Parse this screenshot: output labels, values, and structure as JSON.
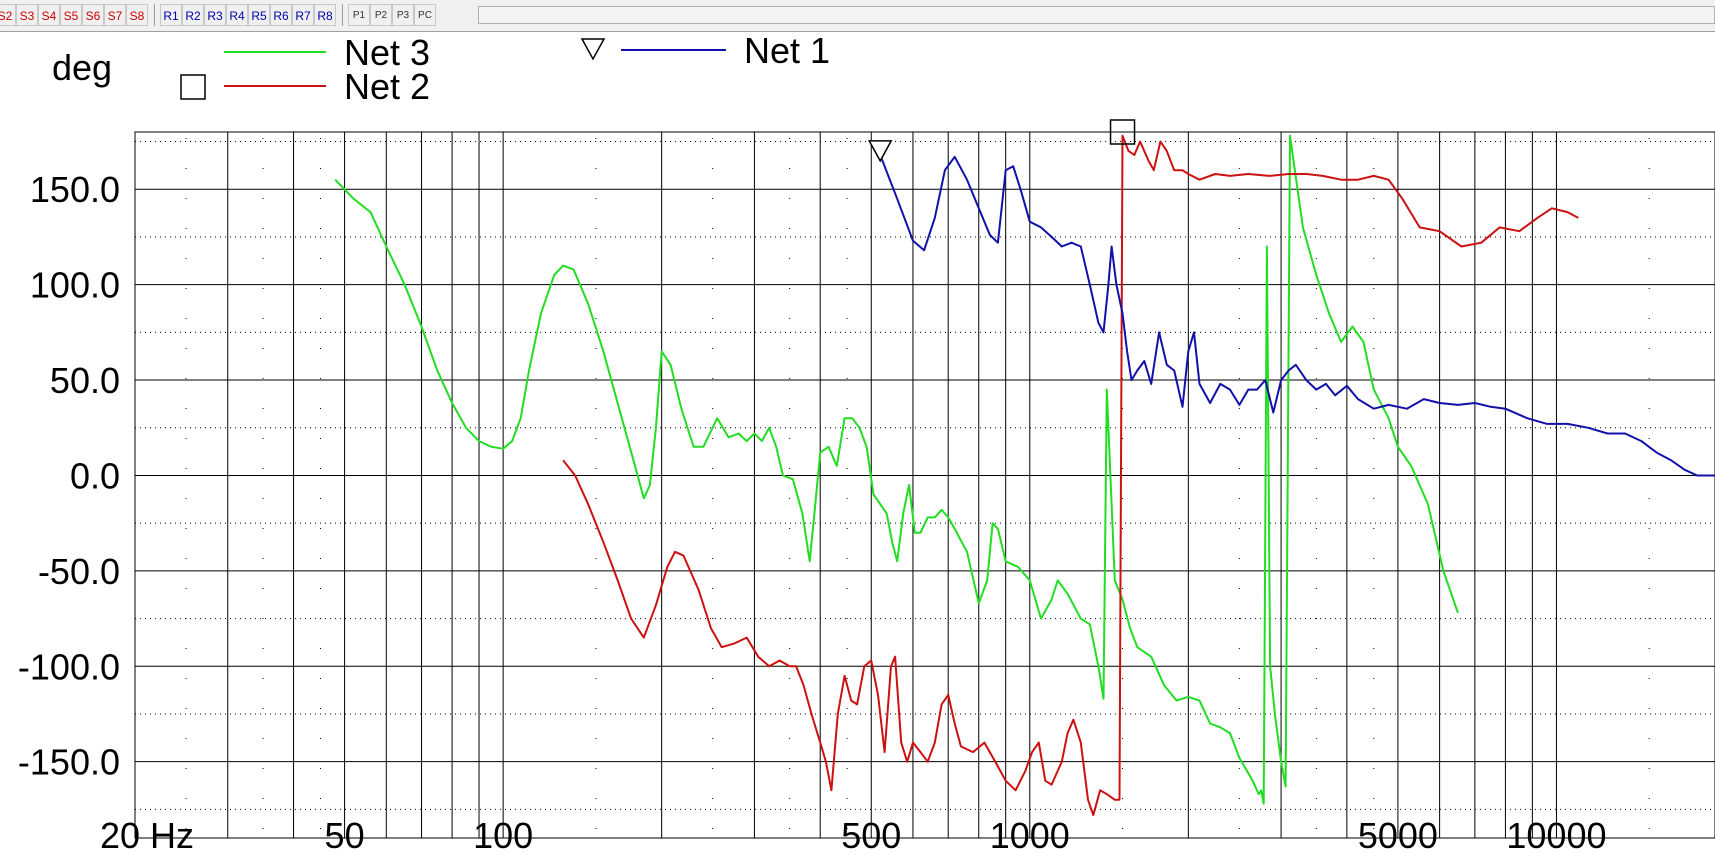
{
  "toolbar": {
    "s_buttons": [
      "S2",
      "S3",
      "S4",
      "S5",
      "S6",
      "S7",
      "S8"
    ],
    "r_buttons": [
      "R1",
      "R2",
      "R3",
      "R4",
      "R5",
      "R6",
      "R7",
      "R8"
    ],
    "p_buttons": [
      "P1",
      "P2",
      "P3",
      "PC"
    ]
  },
  "chart_data": {
    "type": "line",
    "ylabel": "deg",
    "x_scale": "log",
    "xlim": [
      20,
      20000
    ],
    "ylim": [
      -190,
      180
    ],
    "x_tick_labels": [
      {
        "value": 20,
        "label": "20 Hz"
      },
      {
        "value": 50,
        "label": "50"
      },
      {
        "value": 100,
        "label": "100"
      },
      {
        "value": 500,
        "label": "500"
      },
      {
        "value": 1000,
        "label": "1000"
      },
      {
        "value": 5000,
        "label": "5000"
      },
      {
        "value": 10000,
        "label": "10000"
      }
    ],
    "y_tick_labels": [
      {
        "value": 150,
        "label": "150.0"
      },
      {
        "value": 100,
        "label": "100.0"
      },
      {
        "value": 50,
        "label": "50.0"
      },
      {
        "value": 0,
        "label": "0.0"
      },
      {
        "value": -50,
        "label": "-50.0"
      },
      {
        "value": -100,
        "label": "-100.0"
      },
      {
        "value": -150,
        "label": "-150.0"
      }
    ],
    "grid": true,
    "legend": [
      {
        "name": "Net 3",
        "color": "#22dd22",
        "marker": "none"
      },
      {
        "name": "Net 2",
        "color": "#cc1111",
        "marker": "square"
      },
      {
        "name": "Net 1",
        "color": "#1111aa",
        "marker": "triangle"
      }
    ],
    "series": [
      {
        "name": "Net 3",
        "color": "#22dd22",
        "points": [
          [
            48,
            155
          ],
          [
            52,
            145
          ],
          [
            56,
            138
          ],
          [
            60,
            120
          ],
          [
            65,
            100
          ],
          [
            70,
            78
          ],
          [
            75,
            55
          ],
          [
            80,
            38
          ],
          [
            85,
            25
          ],
          [
            90,
            18
          ],
          [
            95,
            15
          ],
          [
            100,
            14
          ],
          [
            104,
            18
          ],
          [
            108,
            30
          ],
          [
            112,
            55
          ],
          [
            118,
            85
          ],
          [
            125,
            105
          ],
          [
            130,
            110
          ],
          [
            136,
            108
          ],
          [
            145,
            90
          ],
          [
            155,
            65
          ],
          [
            168,
            30
          ],
          [
            178,
            5
          ],
          [
            185,
            -12
          ],
          [
            190,
            -5
          ],
          [
            195,
            25
          ],
          [
            200,
            65
          ],
          [
            208,
            58
          ],
          [
            218,
            35
          ],
          [
            230,
            15
          ],
          [
            240,
            15
          ],
          [
            255,
            30
          ],
          [
            268,
            20
          ],
          [
            280,
            22
          ],
          [
            290,
            18
          ],
          [
            300,
            22
          ],
          [
            310,
            18
          ],
          [
            320,
            25
          ],
          [
            330,
            15
          ],
          [
            340,
            0
          ],
          [
            355,
            -2
          ],
          [
            370,
            -20
          ],
          [
            382,
            -45
          ],
          [
            390,
            -20
          ],
          [
            400,
            12
          ],
          [
            415,
            15
          ],
          [
            430,
            5
          ],
          [
            445,
            30
          ],
          [
            460,
            30
          ],
          [
            475,
            25
          ],
          [
            490,
            15
          ],
          [
            505,
            -10
          ],
          [
            520,
            -15
          ],
          [
            535,
            -20
          ],
          [
            548,
            -35
          ],
          [
            560,
            -45
          ],
          [
            575,
            -20
          ],
          [
            590,
            -5
          ],
          [
            605,
            -30
          ],
          [
            620,
            -30
          ],
          [
            640,
            -22
          ],
          [
            660,
            -22
          ],
          [
            680,
            -18
          ],
          [
            700,
            -22
          ],
          [
            720,
            -28
          ],
          [
            760,
            -40
          ],
          [
            800,
            -67
          ],
          [
            830,
            -55
          ],
          [
            850,
            -25
          ],
          [
            870,
            -28
          ],
          [
            900,
            -45
          ],
          [
            950,
            -48
          ],
          [
            1000,
            -55
          ],
          [
            1050,
            -75
          ],
          [
            1100,
            -65
          ],
          [
            1130,
            -55
          ],
          [
            1180,
            -62
          ],
          [
            1250,
            -75
          ],
          [
            1300,
            -78
          ],
          [
            1350,
            -100
          ],
          [
            1380,
            -117
          ],
          [
            1400,
            45
          ],
          [
            1420,
            5
          ],
          [
            1450,
            -55
          ],
          [
            1500,
            -65
          ],
          [
            1550,
            -80
          ],
          [
            1600,
            -90
          ],
          [
            1700,
            -95
          ],
          [
            1800,
            -110
          ],
          [
            1900,
            -118
          ],
          [
            2000,
            -116
          ],
          [
            2100,
            -118
          ],
          [
            2200,
            -130
          ],
          [
            2300,
            -132
          ],
          [
            2400,
            -135
          ],
          [
            2500,
            -148
          ],
          [
            2650,
            -160
          ],
          [
            2720,
            -167
          ],
          [
            2750,
            -165
          ],
          [
            2780,
            -172
          ],
          [
            2820,
            120
          ],
          [
            2860,
            -100
          ],
          [
            2920,
            -125
          ],
          [
            3000,
            -150
          ],
          [
            3060,
            -163
          ],
          [
            3120,
            178
          ],
          [
            3300,
            130
          ],
          [
            3500,
            105
          ],
          [
            3700,
            85
          ],
          [
            3900,
            70
          ],
          [
            4100,
            78
          ],
          [
            4300,
            70
          ],
          [
            4500,
            45
          ],
          [
            4800,
            30
          ],
          [
            5000,
            15
          ],
          [
            5300,
            5
          ],
          [
            5700,
            -15
          ],
          [
            6100,
            -50
          ],
          [
            6500,
            -72
          ]
        ]
      },
      {
        "name": "Net 2",
        "color": "#cc1111",
        "points": [
          [
            130,
            8
          ],
          [
            137,
            0
          ],
          [
            145,
            -15
          ],
          [
            155,
            -35
          ],
          [
            165,
            -55
          ],
          [
            175,
            -75
          ],
          [
            185,
            -85
          ],
          [
            195,
            -68
          ],
          [
            205,
            -48
          ],
          [
            212,
            -40
          ],
          [
            220,
            -42
          ],
          [
            235,
            -60
          ],
          [
            248,
            -80
          ],
          [
            260,
            -90
          ],
          [
            275,
            -88
          ],
          [
            290,
            -85
          ],
          [
            305,
            -95
          ],
          [
            320,
            -100
          ],
          [
            335,
            -97
          ],
          [
            350,
            -100
          ],
          [
            360,
            -100
          ],
          [
            372,
            -110
          ],
          [
            385,
            -125
          ],
          [
            400,
            -140
          ],
          [
            410,
            -150
          ],
          [
            420,
            -165
          ],
          [
            432,
            -125
          ],
          [
            445,
            -105
          ],
          [
            458,
            -118
          ],
          [
            470,
            -120
          ],
          [
            485,
            -100
          ],
          [
            500,
            -97
          ],
          [
            515,
            -115
          ],
          [
            530,
            -145
          ],
          [
            545,
            -100
          ],
          [
            555,
            -95
          ],
          [
            570,
            -140
          ],
          [
            585,
            -150
          ],
          [
            600,
            -140
          ],
          [
            620,
            -145
          ],
          [
            640,
            -150
          ],
          [
            660,
            -140
          ],
          [
            680,
            -120
          ],
          [
            700,
            -115
          ],
          [
            720,
            -130
          ],
          [
            740,
            -142
          ],
          [
            780,
            -145
          ],
          [
            820,
            -140
          ],
          [
            860,
            -150
          ],
          [
            900,
            -160
          ],
          [
            940,
            -165
          ],
          [
            980,
            -155
          ],
          [
            1010,
            -145
          ],
          [
            1040,
            -140
          ],
          [
            1070,
            -160
          ],
          [
            1100,
            -162
          ],
          [
            1150,
            -150
          ],
          [
            1180,
            -135
          ],
          [
            1210,
            -128
          ],
          [
            1250,
            -140
          ],
          [
            1290,
            -170
          ],
          [
            1320,
            -178
          ],
          [
            1360,
            -165
          ],
          [
            1400,
            -167
          ],
          [
            1450,
            -170
          ],
          [
            1480,
            -170
          ],
          [
            1500,
            178
          ],
          [
            1540,
            170
          ],
          [
            1580,
            168
          ],
          [
            1620,
            175
          ],
          [
            1680,
            165
          ],
          [
            1720,
            160
          ],
          [
            1770,
            175
          ],
          [
            1820,
            170
          ],
          [
            1880,
            160
          ],
          [
            1950,
            160
          ],
          [
            2000,
            158
          ],
          [
            2100,
            155
          ],
          [
            2250,
            158
          ],
          [
            2400,
            157
          ],
          [
            2600,
            158
          ],
          [
            2850,
            157
          ],
          [
            3100,
            158
          ],
          [
            3350,
            158
          ],
          [
            3600,
            157
          ],
          [
            3900,
            155
          ],
          [
            4200,
            155
          ],
          [
            4500,
            157
          ],
          [
            4800,
            155
          ],
          [
            5100,
            145
          ],
          [
            5500,
            130
          ],
          [
            6000,
            128
          ],
          [
            6600,
            120
          ],
          [
            7200,
            122
          ],
          [
            7800,
            130
          ],
          [
            8500,
            128
          ],
          [
            9200,
            135
          ],
          [
            9800,
            140
          ],
          [
            10500,
            138
          ],
          [
            11000,
            135
          ]
        ]
      },
      {
        "name": "Net 1",
        "color": "#1111aa",
        "points": [
          [
            520,
            168
          ],
          [
            560,
            145
          ],
          [
            600,
            123
          ],
          [
            630,
            118
          ],
          [
            660,
            135
          ],
          [
            690,
            160
          ],
          [
            720,
            167
          ],
          [
            760,
            155
          ],
          [
            800,
            140
          ],
          [
            840,
            126
          ],
          [
            870,
            122
          ],
          [
            900,
            160
          ],
          [
            930,
            162
          ],
          [
            960,
            150
          ],
          [
            1000,
            133
          ],
          [
            1050,
            130
          ],
          [
            1100,
            125
          ],
          [
            1150,
            120
          ],
          [
            1200,
            122
          ],
          [
            1250,
            120
          ],
          [
            1300,
            100
          ],
          [
            1350,
            80
          ],
          [
            1380,
            75
          ],
          [
            1410,
            100
          ],
          [
            1430,
            120
          ],
          [
            1460,
            100
          ],
          [
            1500,
            85
          ],
          [
            1530,
            65
          ],
          [
            1560,
            50
          ],
          [
            1600,
            55
          ],
          [
            1650,
            60
          ],
          [
            1700,
            48
          ],
          [
            1760,
            75
          ],
          [
            1820,
            58
          ],
          [
            1880,
            55
          ],
          [
            1950,
            36
          ],
          [
            2000,
            65
          ],
          [
            2050,
            75
          ],
          [
            2100,
            48
          ],
          [
            2200,
            38
          ],
          [
            2300,
            48
          ],
          [
            2400,
            45
          ],
          [
            2500,
            37
          ],
          [
            2600,
            45
          ],
          [
            2700,
            45
          ],
          [
            2800,
            50
          ],
          [
            2900,
            33
          ],
          [
            3000,
            50
          ],
          [
            3100,
            55
          ],
          [
            3200,
            58
          ],
          [
            3350,
            50
          ],
          [
            3500,
            45
          ],
          [
            3650,
            48
          ],
          [
            3800,
            42
          ],
          [
            4000,
            47
          ],
          [
            4200,
            40
          ],
          [
            4500,
            35
          ],
          [
            4800,
            37
          ],
          [
            5200,
            35
          ],
          [
            5600,
            40
          ],
          [
            6000,
            38
          ],
          [
            6500,
            37
          ],
          [
            7000,
            38
          ],
          [
            7500,
            36
          ],
          [
            8000,
            35
          ],
          [
            8800,
            30
          ],
          [
            9600,
            27
          ],
          [
            10500,
            27
          ],
          [
            11500,
            25
          ],
          [
            12500,
            22
          ],
          [
            13500,
            22
          ],
          [
            14500,
            18
          ],
          [
            15500,
            12
          ],
          [
            16500,
            8
          ],
          [
            17500,
            3
          ],
          [
            18500,
            0
          ],
          [
            20000,
            0
          ]
        ]
      }
    ]
  }
}
